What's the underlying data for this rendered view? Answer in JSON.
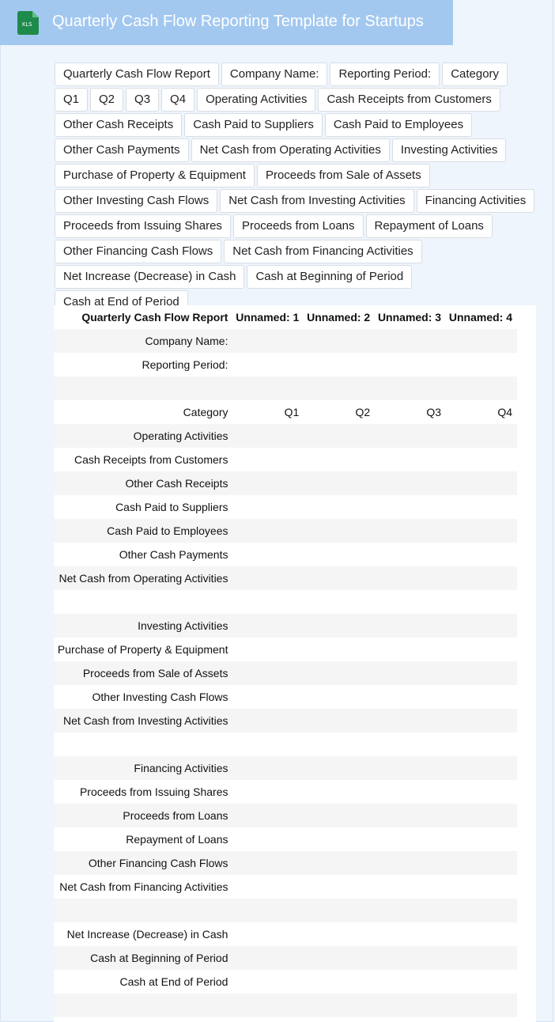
{
  "header": {
    "icon_label": "XLS",
    "title": "Quarterly Cash Flow Reporting Template for Startups"
  },
  "chips": [
    "Quarterly Cash Flow Report",
    "Company Name:",
    "Reporting Period:",
    "Category",
    "Q1",
    "Q2",
    "Q3",
    "Q4",
    "Operating Activities",
    "Cash Receipts from Customers",
    "Other Cash Receipts",
    "Cash Paid to Suppliers",
    "Cash Paid to Employees",
    "Other Cash Payments",
    "Net Cash from Operating Activities",
    "Investing Activities",
    "Purchase of Property & Equipment",
    "Proceeds from Sale of Assets",
    "Other Investing Cash Flows",
    "Net Cash from Investing Activities",
    "Financing Activities",
    "Proceeds from Issuing Shares",
    "Proceeds from Loans",
    "Repayment of Loans",
    "Other Financing Cash Flows",
    "Net Cash from Financing Activities",
    "Net Increase (Decrease) in Cash",
    "Cash at Beginning of Period",
    "Cash at End of Period"
  ],
  "table": {
    "columns": [
      "Quarterly Cash Flow Report",
      "Unnamed: 1",
      "Unnamed: 2",
      "Unnamed: 3",
      "Unnamed: 4"
    ],
    "rows": [
      {
        "index": 0,
        "cells": [
          "Company Name:"
        ]
      },
      {
        "index": 1,
        "cells": [
          "Reporting Period:"
        ]
      },
      {
        "index": 2,
        "cells": []
      },
      {
        "index": 3,
        "cells": [
          "Category",
          "Q1",
          "Q2",
          "Q3",
          "Q4"
        ]
      },
      {
        "index": 4,
        "cells": [
          "Operating Activities"
        ]
      },
      {
        "index": 5,
        "cells": [
          "Cash Receipts from Customers"
        ]
      },
      {
        "index": 6,
        "cells": [
          "Other Cash Receipts"
        ]
      },
      {
        "index": 7,
        "cells": [
          "Cash Paid to Suppliers"
        ]
      },
      {
        "index": 8,
        "cells": [
          "Cash Paid to Employees"
        ]
      },
      {
        "index": 9,
        "cells": [
          "Other Cash Payments"
        ]
      },
      {
        "index": 10,
        "cells": [
          "Net Cash from Operating Activities"
        ]
      },
      {
        "index": 11,
        "cells": []
      },
      {
        "index": 12,
        "cells": [
          "Investing Activities"
        ]
      },
      {
        "index": 13,
        "cells": [
          "Purchase of Property & Equipment"
        ]
      },
      {
        "index": 14,
        "cells": [
          "Proceeds from Sale of Assets"
        ]
      },
      {
        "index": 15,
        "cells": [
          "Other Investing Cash Flows"
        ]
      },
      {
        "index": 16,
        "cells": [
          "Net Cash from Investing Activities"
        ]
      },
      {
        "index": 17,
        "cells": []
      },
      {
        "index": 18,
        "cells": [
          "Financing Activities"
        ]
      },
      {
        "index": 19,
        "cells": [
          "Proceeds from Issuing Shares"
        ]
      },
      {
        "index": 20,
        "cells": [
          "Proceeds from Loans"
        ]
      },
      {
        "index": 21,
        "cells": [
          "Repayment of Loans"
        ]
      },
      {
        "index": 22,
        "cells": [
          "Other Financing Cash Flows"
        ]
      },
      {
        "index": 23,
        "cells": [
          "Net Cash from Financing Activities"
        ]
      },
      {
        "index": 24,
        "cells": []
      },
      {
        "index": 25,
        "cells": [
          "Net Increase (Decrease) in Cash"
        ]
      },
      {
        "index": 26,
        "cells": [
          "Cash at Beginning of Period"
        ]
      },
      {
        "index": 27,
        "cells": [
          "Cash at End of Period"
        ]
      },
      {
        "index": 28,
        "cells": []
      }
    ]
  }
}
